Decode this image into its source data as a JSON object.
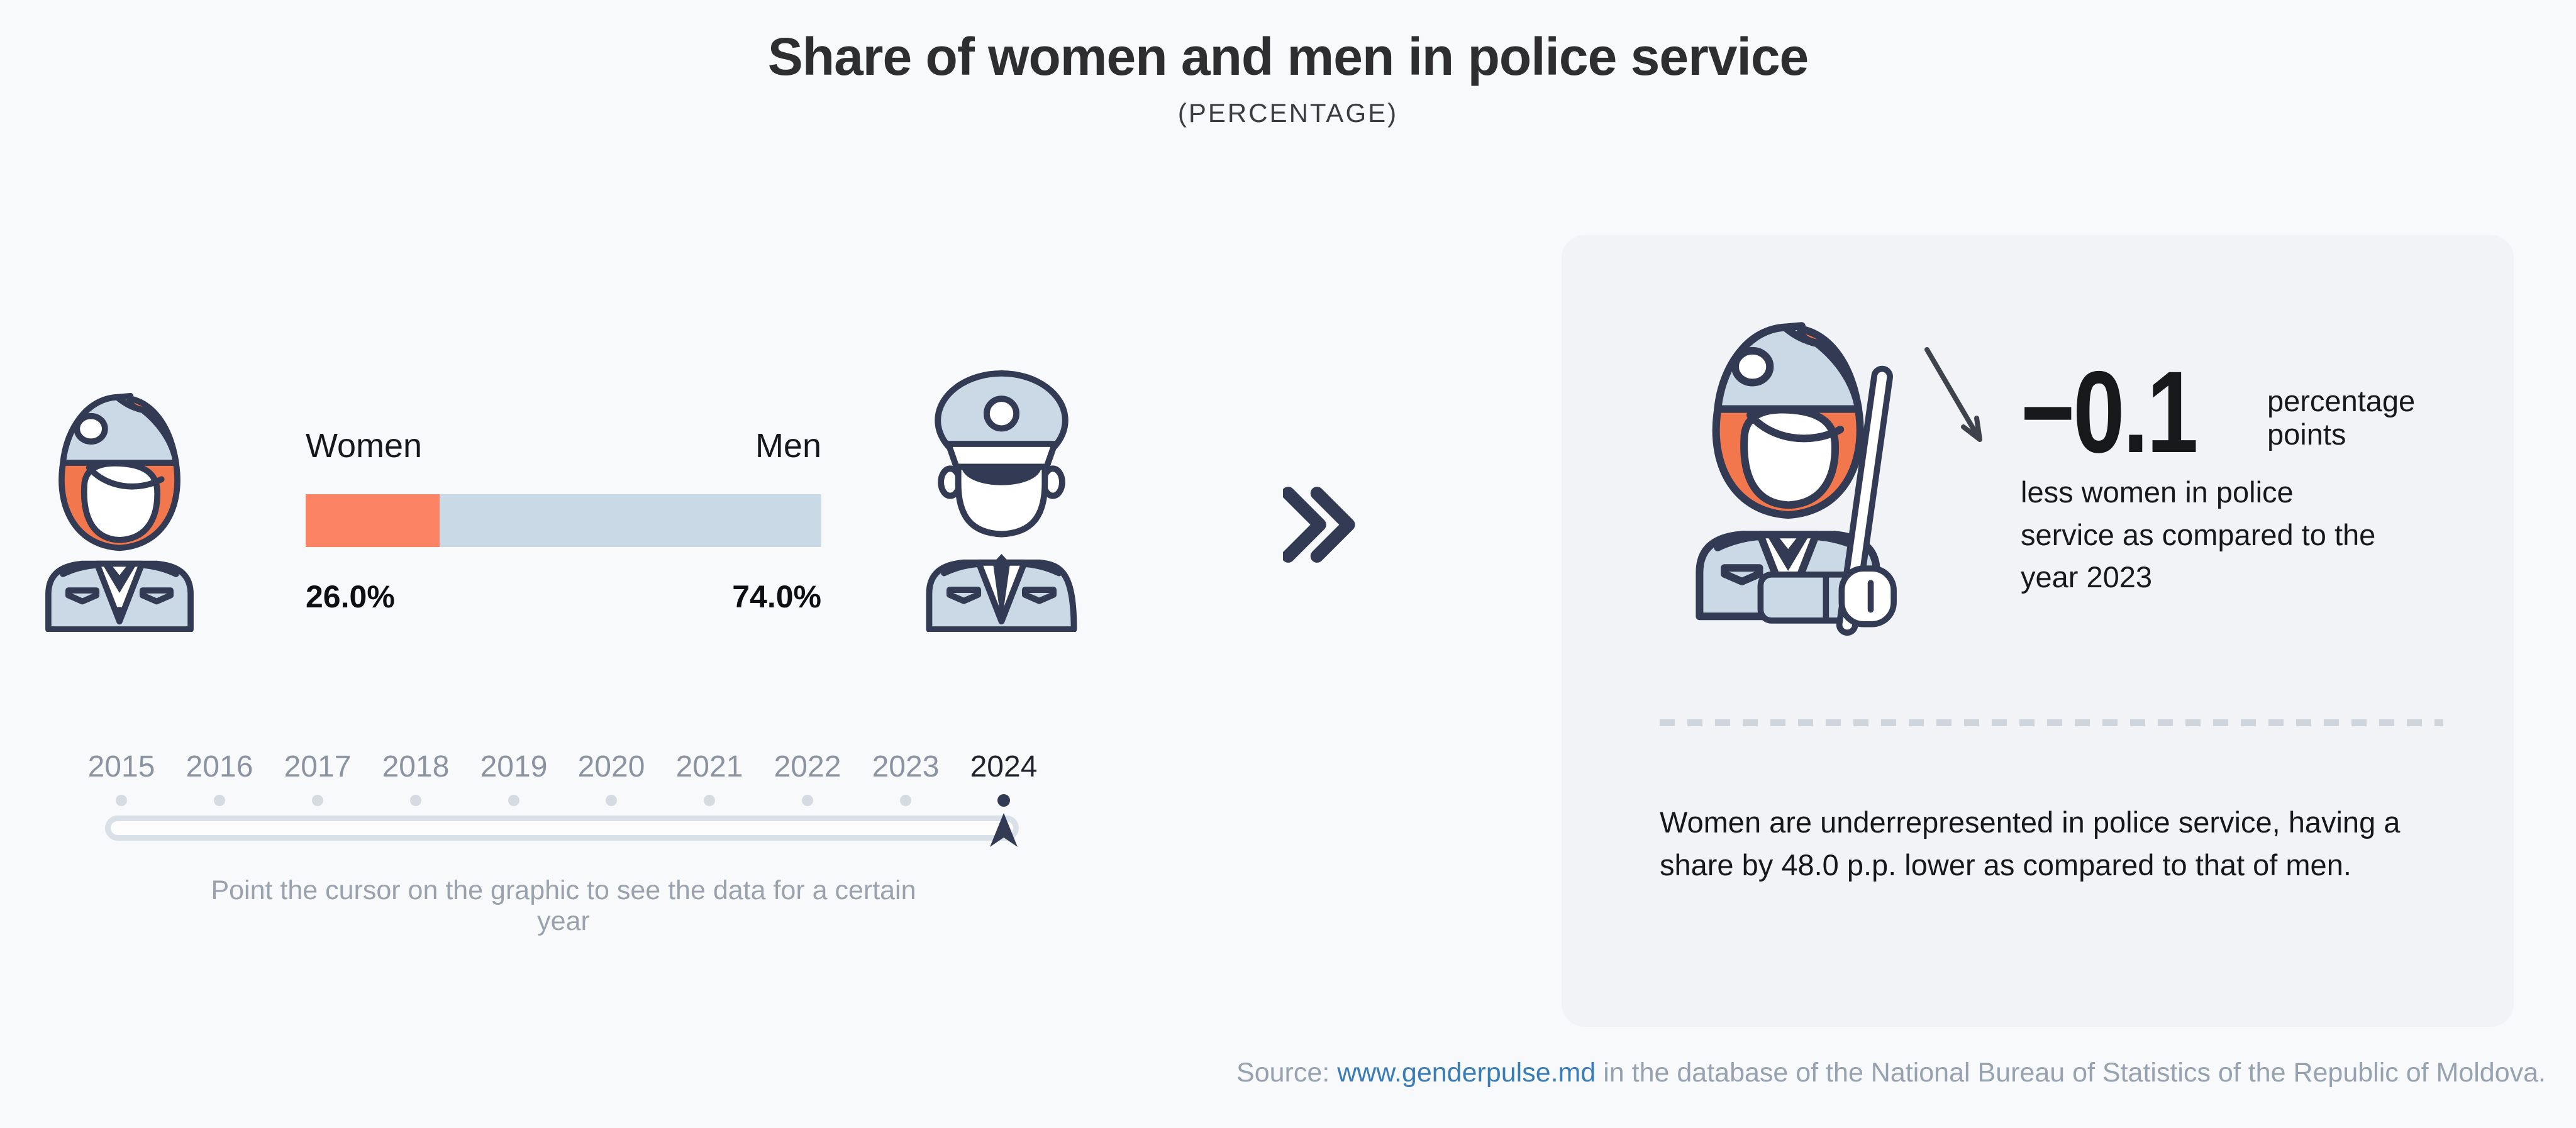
{
  "page": {
    "title": "Share of women and men in police service",
    "subtitle": "(PERCENTAGE)"
  },
  "chart_data": {
    "type": "bar",
    "title": "Share of women and men in police service",
    "subtitle": "(PERCENTAGE)",
    "categories": [
      "Women",
      "Men"
    ],
    "values": [
      26.0,
      74.0
    ],
    "value_labels": [
      "26.0%",
      "74.0%"
    ],
    "unit": "percent",
    "colors": {
      "women": "#FC8363",
      "men": "#C9DAE6"
    },
    "years": [
      "2015",
      "2016",
      "2017",
      "2018",
      "2019",
      "2020",
      "2021",
      "2022",
      "2023",
      "2024"
    ],
    "selected_year": "2024",
    "yoy_change_pp": -0.1,
    "gap_pp": 48.0,
    "legend_position": "above-bar",
    "grid": false
  },
  "bar": {
    "women_label": "Women",
    "men_label": "Men",
    "women_value": "26.0%",
    "men_value": "74.0%"
  },
  "timeline": {
    "hint": "Point the cursor on the graphic to see the data for a certain year"
  },
  "insight_card": {
    "delta_value": "−0.1",
    "delta_unit": "percentage points",
    "delta_description": "less women in police service as compared to the year 2023",
    "summary": "Women are underrepresented in police service, having a share by 48.0 p.p. lower as compared to that of men."
  },
  "source": {
    "label": "Source:",
    "link_text": "www.genderpulse.md",
    "rest": "in the database of the National Bureau of Statistics of the Republic of Moldova."
  }
}
